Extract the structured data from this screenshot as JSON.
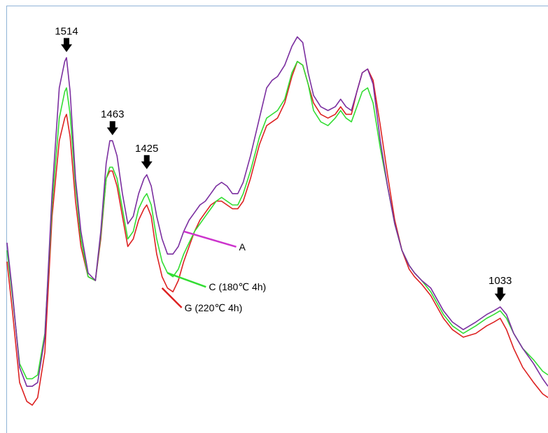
{
  "chart_data": {
    "type": "line",
    "title": "",
    "xlabel": "",
    "ylabel": "",
    "grid": false,
    "xlim": [
      1580,
      980
    ],
    "ylim": [
      0,
      100
    ],
    "series": [
      {
        "name": "A",
        "color": "#7b2fa0",
        "label_color": "#cc33cc",
        "points": [
          [
            1580,
            45
          ],
          [
            1574,
            32
          ],
          [
            1566,
            12
          ],
          [
            1558,
            7
          ],
          [
            1552,
            7
          ],
          [
            1546,
            8
          ],
          [
            1538,
            20
          ],
          [
            1530,
            58
          ],
          [
            1522,
            86
          ],
          [
            1516,
            93
          ],
          [
            1514,
            94
          ],
          [
            1510,
            85
          ],
          [
            1504,
            62
          ],
          [
            1498,
            48
          ],
          [
            1490,
            37
          ],
          [
            1482,
            35
          ],
          [
            1476,
            48
          ],
          [
            1470,
            66
          ],
          [
            1466,
            72
          ],
          [
            1463,
            72
          ],
          [
            1458,
            68
          ],
          [
            1452,
            58
          ],
          [
            1446,
            50
          ],
          [
            1440,
            52
          ],
          [
            1434,
            58
          ],
          [
            1428,
            62
          ],
          [
            1425,
            63
          ],
          [
            1420,
            60
          ],
          [
            1414,
            52
          ],
          [
            1408,
            46
          ],
          [
            1402,
            42
          ],
          [
            1396,
            42
          ],
          [
            1390,
            44
          ],
          [
            1384,
            48
          ],
          [
            1378,
            51
          ],
          [
            1372,
            53
          ],
          [
            1366,
            55
          ],
          [
            1360,
            56
          ],
          [
            1354,
            58
          ],
          [
            1348,
            60
          ],
          [
            1342,
            61
          ],
          [
            1336,
            60
          ],
          [
            1330,
            58
          ],
          [
            1324,
            58
          ],
          [
            1318,
            61
          ],
          [
            1310,
            68
          ],
          [
            1300,
            78
          ],
          [
            1292,
            86
          ],
          [
            1286,
            88
          ],
          [
            1280,
            89
          ],
          [
            1272,
            92
          ],
          [
            1264,
            97
          ],
          [
            1258,
            99.5
          ],
          [
            1252,
            98
          ],
          [
            1246,
            90
          ],
          [
            1240,
            84
          ],
          [
            1232,
            81
          ],
          [
            1224,
            80
          ],
          [
            1216,
            81
          ],
          [
            1210,
            83
          ],
          [
            1204,
            81
          ],
          [
            1198,
            80
          ],
          [
            1192,
            85
          ],
          [
            1186,
            90
          ],
          [
            1180,
            91
          ],
          [
            1174,
            87
          ],
          [
            1166,
            72
          ],
          [
            1158,
            60
          ],
          [
            1150,
            50
          ],
          [
            1142,
            43
          ],
          [
            1134,
            39
          ],
          [
            1128,
            37
          ],
          [
            1120,
            35
          ],
          [
            1110,
            33
          ],
          [
            1096,
            27
          ],
          [
            1086,
            24
          ],
          [
            1074,
            22
          ],
          [
            1060,
            24
          ],
          [
            1048,
            26
          ],
          [
            1040,
            27
          ],
          [
            1033,
            28
          ],
          [
            1026,
            26
          ],
          [
            1018,
            21
          ],
          [
            1008,
            17
          ],
          [
            996,
            13
          ],
          [
            986,
            9
          ],
          [
            980,
            7
          ]
        ]
      },
      {
        "name": "C (180℃ 4h)",
        "color": "#33dd33",
        "label_color": "#33dd33",
        "points": [
          [
            1580,
            43
          ],
          [
            1574,
            31
          ],
          [
            1566,
            13
          ],
          [
            1558,
            9
          ],
          [
            1552,
            9
          ],
          [
            1546,
            10
          ],
          [
            1538,
            21
          ],
          [
            1530,
            55
          ],
          [
            1522,
            78
          ],
          [
            1516,
            85
          ],
          [
            1514,
            86
          ],
          [
            1510,
            79
          ],
          [
            1504,
            60
          ],
          [
            1498,
            46
          ],
          [
            1490,
            36
          ],
          [
            1482,
            35
          ],
          [
            1476,
            47
          ],
          [
            1470,
            62
          ],
          [
            1466,
            65
          ],
          [
            1463,
            65
          ],
          [
            1458,
            62
          ],
          [
            1452,
            54
          ],
          [
            1446,
            46
          ],
          [
            1440,
            48
          ],
          [
            1434,
            54
          ],
          [
            1428,
            57
          ],
          [
            1425,
            58
          ],
          [
            1420,
            55
          ],
          [
            1414,
            46
          ],
          [
            1408,
            40
          ],
          [
            1402,
            37
          ],
          [
            1396,
            36
          ],
          [
            1390,
            38
          ],
          [
            1384,
            42
          ],
          [
            1378,
            45
          ],
          [
            1372,
            48
          ],
          [
            1366,
            50
          ],
          [
            1360,
            52
          ],
          [
            1354,
            54
          ],
          [
            1348,
            56
          ],
          [
            1342,
            57
          ],
          [
            1336,
            56
          ],
          [
            1330,
            55
          ],
          [
            1324,
            55
          ],
          [
            1318,
            58
          ],
          [
            1310,
            64
          ],
          [
            1300,
            73
          ],
          [
            1292,
            78
          ],
          [
            1286,
            79
          ],
          [
            1280,
            80
          ],
          [
            1272,
            83
          ],
          [
            1264,
            90
          ],
          [
            1258,
            93
          ],
          [
            1252,
            92
          ],
          [
            1246,
            87
          ],
          [
            1240,
            80
          ],
          [
            1232,
            77
          ],
          [
            1224,
            76
          ],
          [
            1216,
            78
          ],
          [
            1210,
            80
          ],
          [
            1204,
            78
          ],
          [
            1198,
            77
          ],
          [
            1192,
            81
          ],
          [
            1186,
            85
          ],
          [
            1180,
            86
          ],
          [
            1174,
            82
          ],
          [
            1166,
            70
          ],
          [
            1158,
            60
          ],
          [
            1150,
            50
          ],
          [
            1142,
            43
          ],
          [
            1134,
            39
          ],
          [
            1128,
            37
          ],
          [
            1120,
            35
          ],
          [
            1110,
            32
          ],
          [
            1096,
            26
          ],
          [
            1086,
            23
          ],
          [
            1074,
            21
          ],
          [
            1060,
            23
          ],
          [
            1048,
            25
          ],
          [
            1040,
            26
          ],
          [
            1033,
            27
          ],
          [
            1026,
            25
          ],
          [
            1018,
            21
          ],
          [
            1008,
            17
          ],
          [
            996,
            14
          ],
          [
            986,
            11
          ],
          [
            980,
            10
          ]
        ]
      },
      {
        "name": "G (220℃ 4h)",
        "color": "#dd2222",
        "label_color": "#dd2222",
        "points": [
          [
            1580,
            40
          ],
          [
            1574,
            27
          ],
          [
            1566,
            8
          ],
          [
            1558,
            3
          ],
          [
            1552,
            2
          ],
          [
            1546,
            4
          ],
          [
            1538,
            16
          ],
          [
            1530,
            52
          ],
          [
            1522,
            72
          ],
          [
            1516,
            78
          ],
          [
            1514,
            79
          ],
          [
            1510,
            73
          ],
          [
            1504,
            56
          ],
          [
            1498,
            44
          ],
          [
            1490,
            36
          ],
          [
            1482,
            35
          ],
          [
            1476,
            46
          ],
          [
            1470,
            62
          ],
          [
            1466,
            64
          ],
          [
            1463,
            64
          ],
          [
            1458,
            60
          ],
          [
            1452,
            52
          ],
          [
            1446,
            44
          ],
          [
            1440,
            46
          ],
          [
            1434,
            51
          ],
          [
            1428,
            54
          ],
          [
            1425,
            55
          ],
          [
            1420,
            52
          ],
          [
            1414,
            42
          ],
          [
            1408,
            36
          ],
          [
            1402,
            33
          ],
          [
            1396,
            32
          ],
          [
            1390,
            35
          ],
          [
            1384,
            40
          ],
          [
            1378,
            44
          ],
          [
            1372,
            48
          ],
          [
            1366,
            51
          ],
          [
            1360,
            53
          ],
          [
            1354,
            55
          ],
          [
            1348,
            56
          ],
          [
            1342,
            56
          ],
          [
            1336,
            55
          ],
          [
            1330,
            54
          ],
          [
            1324,
            54
          ],
          [
            1318,
            56
          ],
          [
            1310,
            62
          ],
          [
            1300,
            71
          ],
          [
            1292,
            76
          ],
          [
            1286,
            77
          ],
          [
            1280,
            78
          ],
          [
            1272,
            82
          ],
          [
            1264,
            89
          ],
          [
            1258,
            93
          ],
          [
            1252,
            92
          ],
          [
            1246,
            87
          ],
          [
            1240,
            82
          ],
          [
            1232,
            79
          ],
          [
            1224,
            78
          ],
          [
            1216,
            79
          ],
          [
            1210,
            81
          ],
          [
            1204,
            79
          ],
          [
            1198,
            79
          ],
          [
            1192,
            85
          ],
          [
            1186,
            90
          ],
          [
            1180,
            91
          ],
          [
            1174,
            88
          ],
          [
            1166,
            76
          ],
          [
            1158,
            63
          ],
          [
            1150,
            51
          ],
          [
            1142,
            43
          ],
          [
            1134,
            38
          ],
          [
            1128,
            36
          ],
          [
            1120,
            34
          ],
          [
            1110,
            31
          ],
          [
            1096,
            25
          ],
          [
            1086,
            22
          ],
          [
            1074,
            20
          ],
          [
            1060,
            21
          ],
          [
            1048,
            23
          ],
          [
            1040,
            24
          ],
          [
            1033,
            25
          ],
          [
            1026,
            22
          ],
          [
            1018,
            17
          ],
          [
            1008,
            12
          ],
          [
            996,
            8
          ],
          [
            986,
            5
          ],
          [
            980,
            4
          ]
        ]
      }
    ],
    "peaks": [
      {
        "label": "1514",
        "x": 1514,
        "y": 94
      },
      {
        "label": "1463",
        "x": 1463,
        "y": 72
      },
      {
        "label": "1425",
        "x": 1425,
        "y": 63
      },
      {
        "label": "1033",
        "x": 1033,
        "y": 28
      }
    ],
    "series_labels": [
      {
        "series": 0,
        "text": "A",
        "x": 1384,
        "y": 48
      },
      {
        "series": 1,
        "text": "C (180℃ 4h)",
        "x": 1402,
        "y": 37
      },
      {
        "series": 2,
        "text": "G (220℃ 4h)",
        "x": 1408,
        "y": 33
      }
    ]
  }
}
